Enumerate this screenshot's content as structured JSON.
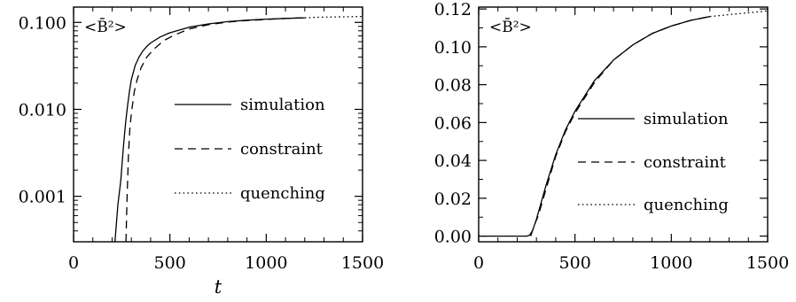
{
  "chart_data": [
    {
      "type": "line",
      "panel_label": "<B̄²>",
      "xlabel": "t",
      "ylabel": "",
      "xlim": [
        0,
        1500
      ],
      "ylim": [
        0.0003,
        0.15
      ],
      "yscale": "log",
      "xticks": [
        0,
        500,
        1000,
        1500
      ],
      "xtick_labels": [
        "0",
        "500",
        "1000",
        "1500"
      ],
      "yticks": [
        0.001,
        0.01,
        0.1
      ],
      "ytick_labels": [
        "0.001",
        "0.010",
        "0.100"
      ],
      "grid": false,
      "legend_position": "right",
      "series": [
        {
          "name": "simulation",
          "style": "solid",
          "x": [
            215,
            230,
            245,
            260,
            270,
            280,
            290,
            300,
            320,
            340,
            360,
            380,
            400,
            450,
            500,
            600,
            700,
            800,
            900,
            1000,
            1100,
            1200
          ],
          "y": [
            0.0003,
            0.0008,
            0.0015,
            0.004,
            0.007,
            0.011,
            0.016,
            0.022,
            0.032,
            0.04,
            0.047,
            0.053,
            0.058,
            0.068,
            0.076,
            0.088,
            0.096,
            0.102,
            0.106,
            0.109,
            0.111,
            0.113
          ]
        },
        {
          "name": "constraint",
          "style": "dashed",
          "x": [
            272,
            278,
            285,
            292,
            300,
            315,
            330,
            350,
            380,
            420,
            470,
            520,
            600,
            700,
            800,
            900,
            1000,
            1100,
            1200
          ],
          "y": [
            0.0003,
            0.001,
            0.003,
            0.006,
            0.009,
            0.016,
            0.022,
            0.03,
            0.04,
            0.05,
            0.062,
            0.071,
            0.084,
            0.094,
            0.101,
            0.105,
            0.108,
            0.111,
            0.113
          ]
        },
        {
          "name": "quenching",
          "style": "dotted",
          "x": [
            1200,
            1300,
            1400,
            1500
          ],
          "y": [
            0.113,
            0.115,
            0.116,
            0.117
          ]
        }
      ]
    },
    {
      "type": "line",
      "panel_label": "<B̄²>",
      "xlabel": "",
      "ylabel": "",
      "xlim": [
        0,
        1500
      ],
      "ylim": [
        -0.003,
        0.121
      ],
      "yscale": "linear",
      "xticks": [
        0,
        500,
        1000,
        1500
      ],
      "xtick_labels": [
        "0",
        "500",
        "1000",
        "1500"
      ],
      "yticks": [
        0.0,
        0.02,
        0.04,
        0.06,
        0.08,
        0.1,
        0.12
      ],
      "ytick_labels": [
        "0.00",
        "0.02",
        "0.04",
        "0.06",
        "0.08",
        "0.10",
        "0.12"
      ],
      "grid": false,
      "legend_position": "bottom-right",
      "series": [
        {
          "name": "simulation",
          "style": "solid",
          "x": [
            0,
            200,
            250,
            265,
            280,
            300,
            350,
            400,
            450,
            500,
            600,
            700,
            800,
            900,
            1000,
            1100,
            1200
          ],
          "y": [
            0.0,
            0.0,
            0.0,
            0.0005,
            0.003,
            0.009,
            0.027,
            0.043,
            0.056,
            0.066,
            0.082,
            0.093,
            0.101,
            0.107,
            0.111,
            0.114,
            0.116
          ]
        },
        {
          "name": "constraint",
          "style": "dashed",
          "x": [
            270,
            290,
            310,
            350,
            400,
            450,
            500,
            600,
            700,
            800,
            900,
            1000,
            1100,
            1200
          ],
          "y": [
            0.0,
            0.006,
            0.011,
            0.025,
            0.042,
            0.055,
            0.065,
            0.081,
            0.093,
            0.101,
            0.107,
            0.111,
            0.114,
            0.116
          ]
        },
        {
          "name": "quenching",
          "style": "dotted",
          "x": [
            1200,
            1300,
            1400,
            1500
          ],
          "y": [
            0.116,
            0.117,
            0.118,
            0.119
          ]
        }
      ]
    }
  ]
}
